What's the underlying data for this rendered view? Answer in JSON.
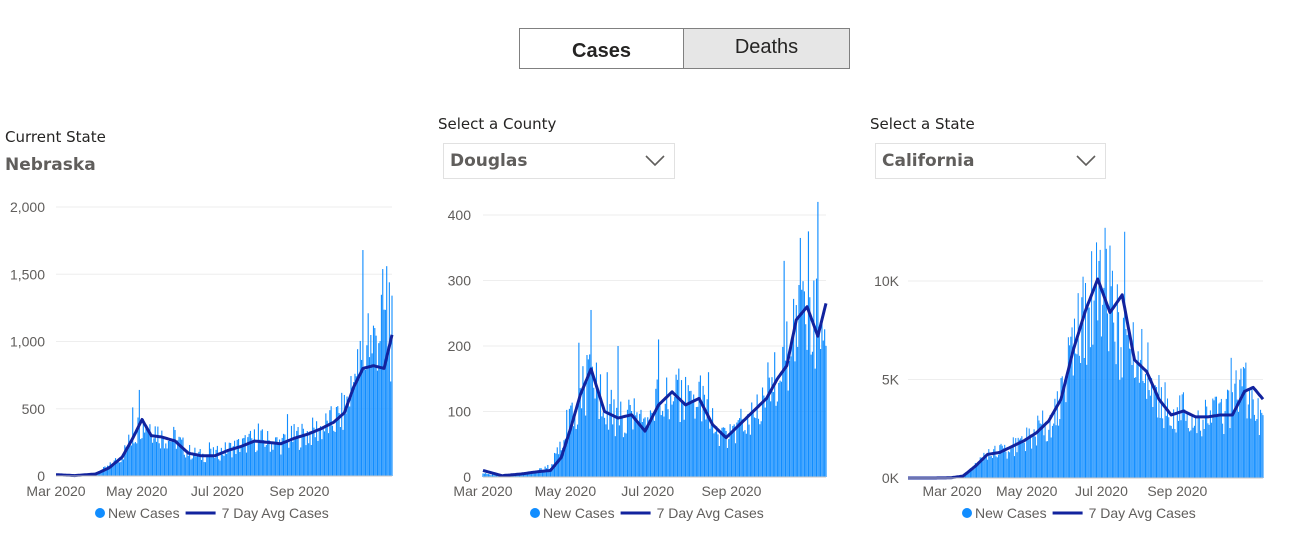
{
  "toggle": {
    "cases_label": "Cases",
    "deaths_label": "Deaths",
    "selected": "Cases"
  },
  "panels": {
    "state": {
      "label": "Current State",
      "value": "Nebraska"
    },
    "county": {
      "label": "Select a County",
      "value": "Douglas"
    },
    "compare": {
      "label": "Select a State",
      "value": "California"
    }
  },
  "colors": {
    "bar": "#118dff",
    "line": "#12239e",
    "grid": "#eeeeee"
  },
  "chart_data": [
    {
      "type": "bar",
      "name": "Nebraska",
      "ylim": [
        0,
        2000
      ],
      "yticks": [
        0,
        500,
        1000,
        1500,
        2000
      ],
      "ytick_labels": [
        "0",
        "500",
        "1,000",
        "1,500",
        "2,000"
      ],
      "xtick_labels": [
        "Mar 2020",
        "May 2020",
        "Jul 2020",
        "Sep 2020"
      ],
      "xtick_days": [
        0,
        61,
        122,
        184
      ],
      "start_date": "2020-03-01",
      "end_date": "2020-11-10",
      "series": [
        {
          "name": "New Cases",
          "type": "bar",
          "anchors_days": [
            0,
            14,
            30,
            40,
            50,
            58,
            65,
            72,
            80,
            90,
            100,
            110,
            120,
            130,
            140,
            150,
            160,
            170,
            180,
            190,
            200,
            210,
            218,
            225,
            232,
            240,
            248,
            254
          ],
          "anchors_values": [
            0,
            3,
            20,
            70,
            150,
            300,
            400,
            380,
            290,
            280,
            180,
            150,
            160,
            200,
            230,
            270,
            260,
            240,
            290,
            310,
            350,
            400,
            480,
            700,
            850,
            1000,
            1200,
            1000
          ],
          "spikes": [
            [
              58,
              510
            ],
            [
              63,
              640
            ],
            [
              116,
              250
            ],
            [
              153,
              390
            ],
            [
              175,
              460
            ],
            [
              226,
              760
            ],
            [
              232,
              1680
            ],
            [
              236,
              1210
            ],
            [
              241,
              1100
            ],
            [
              250,
              1560
            ],
            [
              252,
              1440
            ]
          ]
        },
        {
          "name": "7 Day Avg Cases",
          "type": "line",
          "anchors_days": [
            0,
            14,
            30,
            40,
            50,
            58,
            65,
            72,
            80,
            90,
            100,
            110,
            120,
            130,
            140,
            150,
            160,
            170,
            180,
            190,
            200,
            210,
            218,
            225,
            232,
            240,
            248,
            254
          ],
          "anchors_values": [
            10,
            3,
            15,
            60,
            140,
            280,
            420,
            300,
            290,
            260,
            170,
            150,
            150,
            190,
            220,
            260,
            250,
            240,
            280,
            310,
            350,
            400,
            470,
            660,
            800,
            820,
            800,
            1050
          ]
        }
      ],
      "legend": [
        "New Cases",
        "7 Day Avg Cases"
      ]
    },
    {
      "type": "bar",
      "name": "Douglas",
      "ylim": [
        0,
        400
      ],
      "yticks": [
        0,
        100,
        200,
        300,
        400
      ],
      "ytick_labels": [
        "0",
        "100",
        "200",
        "300",
        "400"
      ],
      "xtick_labels": [
        "Mar 2020",
        "May 2020",
        "Jul 2020",
        "Sep 2020"
      ],
      "xtick_days": [
        0,
        61,
        122,
        184
      ],
      "start_date": "2020-03-01",
      "end_date": "2020-11-10",
      "series": [
        {
          "name": "New Cases",
          "type": "bar",
          "anchors_days": [
            0,
            14,
            30,
            40,
            50,
            58,
            65,
            72,
            80,
            90,
            100,
            110,
            120,
            130,
            140,
            150,
            160,
            170,
            180,
            190,
            200,
            210,
            218,
            225,
            232,
            240,
            248,
            254
          ],
          "anchors_values": [
            5,
            2,
            5,
            10,
            15,
            60,
            100,
            115,
            165,
            110,
            90,
            95,
            70,
            115,
            135,
            115,
            120,
            80,
            55,
            80,
            100,
            130,
            160,
            180,
            250,
            260,
            220,
            260
          ],
          "spikes": [
            [
              71,
              205
            ],
            [
              80,
              255
            ],
            [
              92,
              160
            ],
            [
              100,
              200
            ],
            [
              130,
              210
            ],
            [
              167,
              160
            ],
            [
              223,
              330
            ],
            [
              235,
              365
            ],
            [
              241,
              375
            ],
            [
              245,
              300
            ],
            [
              248,
              420
            ]
          ]
        },
        {
          "name": "7 Day Avg Cases",
          "type": "line",
          "anchors_days": [
            0,
            14,
            30,
            40,
            50,
            58,
            65,
            72,
            80,
            90,
            100,
            110,
            120,
            130,
            140,
            150,
            160,
            170,
            180,
            190,
            200,
            210,
            218,
            225,
            232,
            240,
            248,
            254
          ],
          "anchors_values": [
            10,
            2,
            5,
            8,
            10,
            30,
            75,
            125,
            165,
            100,
            90,
            95,
            70,
            110,
            130,
            110,
            120,
            80,
            60,
            80,
            100,
            120,
            150,
            170,
            240,
            260,
            215,
            265
          ]
        }
      ],
      "legend": [
        "New Cases",
        "7 Day Avg Cases"
      ]
    },
    {
      "type": "bar",
      "name": "California",
      "ylim": [
        0,
        10000
      ],
      "yticks": [
        0,
        5000,
        10000
      ],
      "ytick_labels": [
        "0K",
        "5K",
        "10K"
      ],
      "xtick_labels": [
        "Mar 2020",
        "May 2020",
        "Jul 2020",
        "Sep 2020"
      ],
      "xtick_days": [
        0,
        61,
        122,
        184
      ],
      "start_date": "2020-01-25",
      "end_date": "2020-11-10",
      "series": [
        {
          "name": "New Cases",
          "type": "bar",
          "anchors_days": [
            0,
            20,
            35,
            45,
            55,
            65,
            75,
            85,
            95,
            105,
            115,
            125,
            135,
            145,
            155,
            165,
            175,
            185,
            195,
            205,
            215,
            225,
            235,
            245,
            255,
            265,
            275,
            282,
            290
          ],
          "anchors_values": [
            0,
            0,
            10,
            100,
            600,
            1200,
            1300,
            1600,
            1900,
            2300,
            2900,
            4000,
            6500,
            8500,
            9800,
            8700,
            7000,
            6000,
            5500,
            4000,
            3200,
            3300,
            3100,
            3000,
            3100,
            3900,
            4600,
            3300,
            3300
          ],
          "spikes": [
            [
              100,
              2200
            ],
            [
              145,
              9900
            ],
            [
              161,
              12700
            ],
            [
              165,
              11800
            ],
            [
              177,
              12500
            ],
            [
              264,
              6100
            ]
          ]
        },
        {
          "name": "7 Day Avg Cases",
          "type": "line",
          "anchors_days": [
            0,
            20,
            35,
            45,
            55,
            65,
            75,
            85,
            95,
            105,
            115,
            125,
            135,
            145,
            155,
            165,
            175,
            185,
            195,
            205,
            215,
            225,
            235,
            245,
            255,
            265,
            275,
            282,
            290
          ],
          "anchors_values": [
            0,
            0,
            10,
            100,
            600,
            1200,
            1300,
            1600,
            1900,
            2300,
            2900,
            4000,
            6500,
            8500,
            10100,
            8400,
            9300,
            6000,
            5400,
            4000,
            3200,
            3400,
            3100,
            3100,
            3200,
            3200,
            4400,
            4600,
            4000
          ]
        }
      ],
      "legend": [
        "New Cases",
        "7 Day Avg Cases"
      ]
    }
  ]
}
